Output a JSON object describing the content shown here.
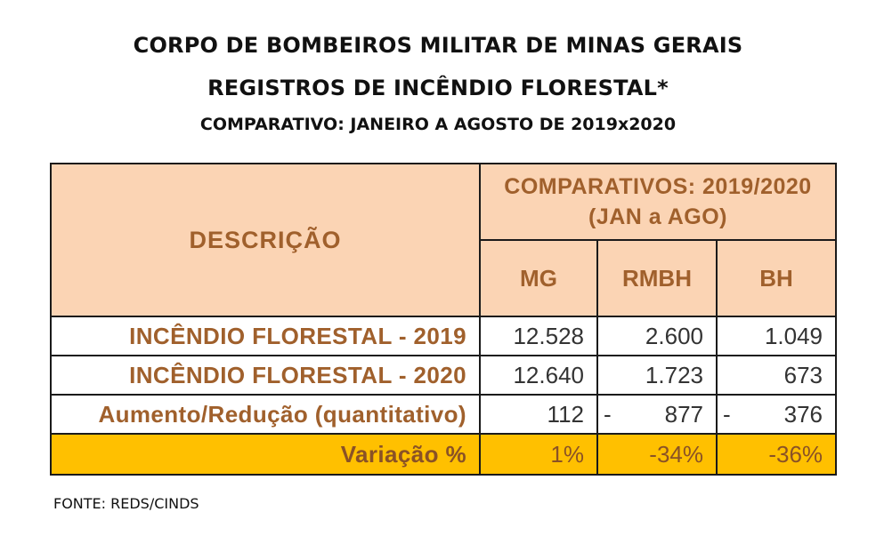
{
  "header": {
    "line1": "CORPO DE BOMBEIROS MILITAR DE MINAS GERAIS",
    "line2": "REGISTROS DE INCÊNDIO FLORESTAL*",
    "line3": "COMPARATIVO: JANEIRO A AGOSTO DE 2019x2020"
  },
  "table": {
    "desc_header": "DESCRIÇÃO",
    "comp_header_1": "COMPARATIVOS: 2019/2020",
    "comp_header_2": "(JAN a AGO)",
    "columns": [
      "MG",
      "RMBH",
      "BH"
    ],
    "rows": [
      {
        "label": "INCÊNDIO FLORESTAL - 2019",
        "values": [
          "12.528",
          "2.600",
          "1.049"
        ],
        "signs": [
          "",
          "",
          ""
        ]
      },
      {
        "label": "INCÊNDIO FLORESTAL - 2020",
        "values": [
          "12.640",
          "1.723",
          "673"
        ],
        "signs": [
          "",
          "",
          ""
        ]
      },
      {
        "label": "Aumento/Redução (quantitativo)",
        "values": [
          "112",
          "877",
          "376"
        ],
        "signs": [
          "",
          "-",
          "-"
        ]
      },
      {
        "label": "Variação %",
        "values": [
          "1%",
          "-34%",
          "-36%"
        ],
        "signs": [
          "",
          "",
          ""
        ]
      }
    ]
  },
  "footer": {
    "source": "FONTE: REDS/CINDS"
  },
  "colors": {
    "header_fill": "#fbd4b4",
    "header_text": "#a0602c",
    "variation_fill": "#ffc000"
  }
}
